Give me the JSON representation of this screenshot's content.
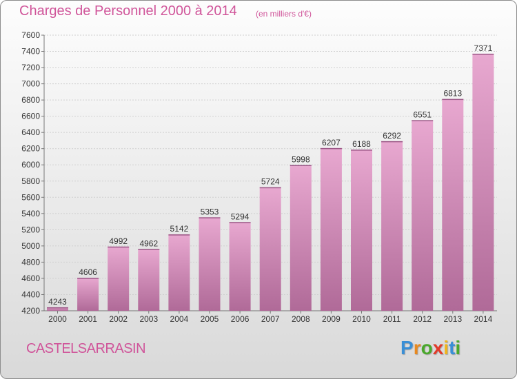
{
  "header": {
    "title": "Charges de Personnel 2000 à 2014",
    "subtitle": "(en milliers d'€)"
  },
  "footer": {
    "commune": "CASTELSARRASIN",
    "logo_letters": [
      "P",
      "r",
      "o",
      "x",
      "i",
      "t",
      "i"
    ],
    "logo_colors": [
      "#3a8fd6",
      "#e8891f",
      "#4aa82c",
      "#e23a2a",
      "#f0b41c",
      "#3a8fd6",
      "#4aa82c"
    ]
  },
  "colors": {
    "title": "#d0559a",
    "bar_top": "#e8a8d0",
    "bar_bottom": "#b06a98",
    "axis_text": "#333333",
    "grid": "#d0d0d0"
  },
  "chart_data": {
    "type": "bar",
    "title": "Charges de Personnel 2000 à 2014",
    "subtitle": "(en milliers d'€)",
    "xlabel": "",
    "ylabel": "",
    "categories": [
      "2000",
      "2001",
      "2002",
      "2003",
      "2004",
      "2005",
      "2006",
      "2007",
      "2008",
      "2009",
      "2010",
      "2011",
      "2012",
      "2013",
      "2014"
    ],
    "values": [
      4243,
      4606,
      4992,
      4962,
      5142,
      5353,
      5294,
      5724,
      5998,
      6207,
      6188,
      6292,
      6551,
      6813,
      7371
    ],
    "ylim": [
      4200,
      7600
    ],
    "yticks": [
      4200,
      4400,
      4600,
      4800,
      5000,
      5200,
      5400,
      5600,
      5800,
      6000,
      6200,
      6400,
      6600,
      6800,
      7000,
      7200,
      7400,
      7600
    ],
    "grid": true,
    "data_labels": true
  }
}
